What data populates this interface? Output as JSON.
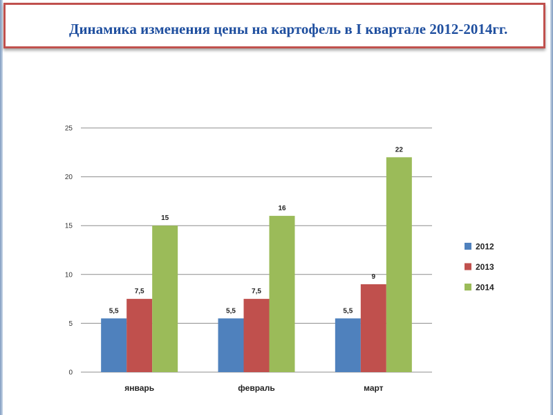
{
  "page": {
    "title": "Динамика изменения цены на картофель в I квартале 2012-2014гг."
  },
  "chart_data": {
    "type": "bar",
    "categories": [
      "январь",
      "февраль",
      "март"
    ],
    "series": [
      {
        "name": "2012",
        "values": [
          5.5,
          5.5,
          5.5
        ],
        "labels": [
          "5,5",
          "5,5",
          "5,5"
        ],
        "color": "#4f81bd"
      },
      {
        "name": "2013",
        "values": [
          7.5,
          7.5,
          9
        ],
        "labels": [
          "7,5",
          "7,5",
          "9"
        ],
        "color": "#c0504d"
      },
      {
        "name": "2014",
        "values": [
          15,
          16,
          22
        ],
        "labels": [
          "15",
          "16",
          "22"
        ],
        "color": "#9bbb59"
      }
    ],
    "ylim": [
      0,
      25
    ],
    "yticks": [
      0,
      5,
      10,
      15,
      20,
      25
    ],
    "grid": true,
    "legend": "right"
  }
}
